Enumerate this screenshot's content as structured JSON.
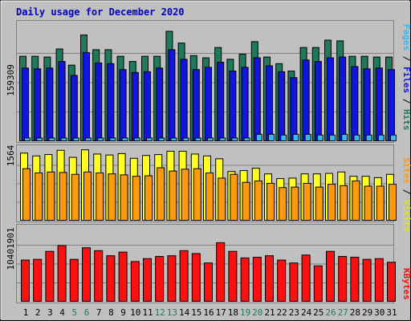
{
  "chart_data": [
    {
      "type": "bar",
      "panel": "top",
      "title": "Daily usage for December 2020",
      "y_max_label": "159309",
      "categories": [
        "1",
        "2",
        "3",
        "4",
        "5",
        "6",
        "7",
        "8",
        "9",
        "10",
        "11",
        "12",
        "13",
        "14",
        "15",
        "16",
        "17",
        "18",
        "19",
        "20",
        "21",
        "22",
        "23",
        "24",
        "25",
        "26",
        "27",
        "28",
        "29",
        "30",
        "31"
      ],
      "weekend_days": [
        "5",
        "6",
        "12",
        "13",
        "19",
        "20",
        "26",
        "27"
      ],
      "ylim": [
        0,
        159309
      ],
      "series": [
        {
          "name": "Hits",
          "color": "#1e7a5a",
          "values": [
            116000,
            116000,
            115000,
            126000,
            104000,
            145000,
            125000,
            125000,
            116000,
            109000,
            116000,
            116000,
            150000,
            134000,
            117000,
            114000,
            128000,
            112000,
            119000,
            136000,
            115000,
            106000,
            96000,
            128000,
            128000,
            138000,
            137000,
            116000,
            116000,
            115000,
            115000
          ]
        },
        {
          "name": "Files",
          "color": "#1414e0",
          "values": [
            100000,
            99000,
            100000,
            109000,
            90000,
            121000,
            107000,
            106000,
            98000,
            94000,
            95000,
            100000,
            125000,
            112000,
            98000,
            101000,
            108000,
            96000,
            101000,
            114000,
            103000,
            95000,
            87000,
            111000,
            109000,
            114000,
            115000,
            102000,
            99000,
            100000,
            98000
          ]
        },
        {
          "name": "Pages",
          "color": "#38b8f0",
          "values": [
            5000,
            5000,
            5000,
            5000,
            5000,
            5000,
            5000,
            5000,
            5000,
            5000,
            5000,
            5000,
            5000,
            5000,
            5000,
            5000,
            5000,
            5000,
            5000,
            10000,
            10000,
            9000,
            10000,
            10000,
            9000,
            9000,
            10000,
            9000,
            9000,
            9000,
            9000
          ]
        }
      ]
    },
    {
      "type": "bar",
      "panel": "middle",
      "y_max_label": "1564",
      "ylim": [
        0,
        1564
      ],
      "series": [
        {
          "name": "Visits",
          "color": "#ffff20",
          "values": [
            1440,
            1380,
            1410,
            1500,
            1350,
            1510,
            1420,
            1400,
            1430,
            1330,
            1390,
            1410,
            1480,
            1480,
            1420,
            1380,
            1320,
            1050,
            1070,
            1120,
            1000,
            900,
            910,
            1000,
            1000,
            1010,
            1040,
            950,
            950,
            920,
            990
          ]
        },
        {
          "name": "Sites",
          "color": "#ff9a10",
          "values": [
            1110,
            1020,
            1040,
            1030,
            990,
            1040,
            1020,
            1000,
            980,
            950,
            960,
            1130,
            1060,
            1100,
            1110,
            1020,
            910,
            990,
            820,
            850,
            800,
            710,
            720,
            800,
            720,
            780,
            750,
            850,
            740,
            740,
            780
          ]
        }
      ]
    },
    {
      "type": "bar",
      "panel": "bottom",
      "y_max_label": "10401901",
      "ylim": [
        0,
        10401901
      ],
      "series": [
        {
          "name": "KBytes",
          "color": "#ff1010",
          "values": [
            5800000,
            5900000,
            7000000,
            7800000,
            5900000,
            7500000,
            7100000,
            6400000,
            6900000,
            5600000,
            6000000,
            6300000,
            6400000,
            7100000,
            6700000,
            5400000,
            8200000,
            7000000,
            6100000,
            6200000,
            6400000,
            5800000,
            5400000,
            6500000,
            5000000,
            7000000,
            6300000,
            6200000,
            5900000,
            6000000,
            5500000
          ]
        }
      ]
    }
  ],
  "legend": {
    "top": {
      "pages": "Pages",
      "slash1": " / ",
      "files": "Files",
      "slash2": " / ",
      "hits": "Hits"
    },
    "middle": {
      "sites": "Sites",
      "slash": " / ",
      "visits": "Visits"
    },
    "bottom": {
      "kbytes": "KBytes"
    }
  },
  "colors": {
    "background": "#c0c0c0",
    "title": "#0000c0",
    "weekday_label": "#000000",
    "weekend_label": "#1e7a5a"
  }
}
